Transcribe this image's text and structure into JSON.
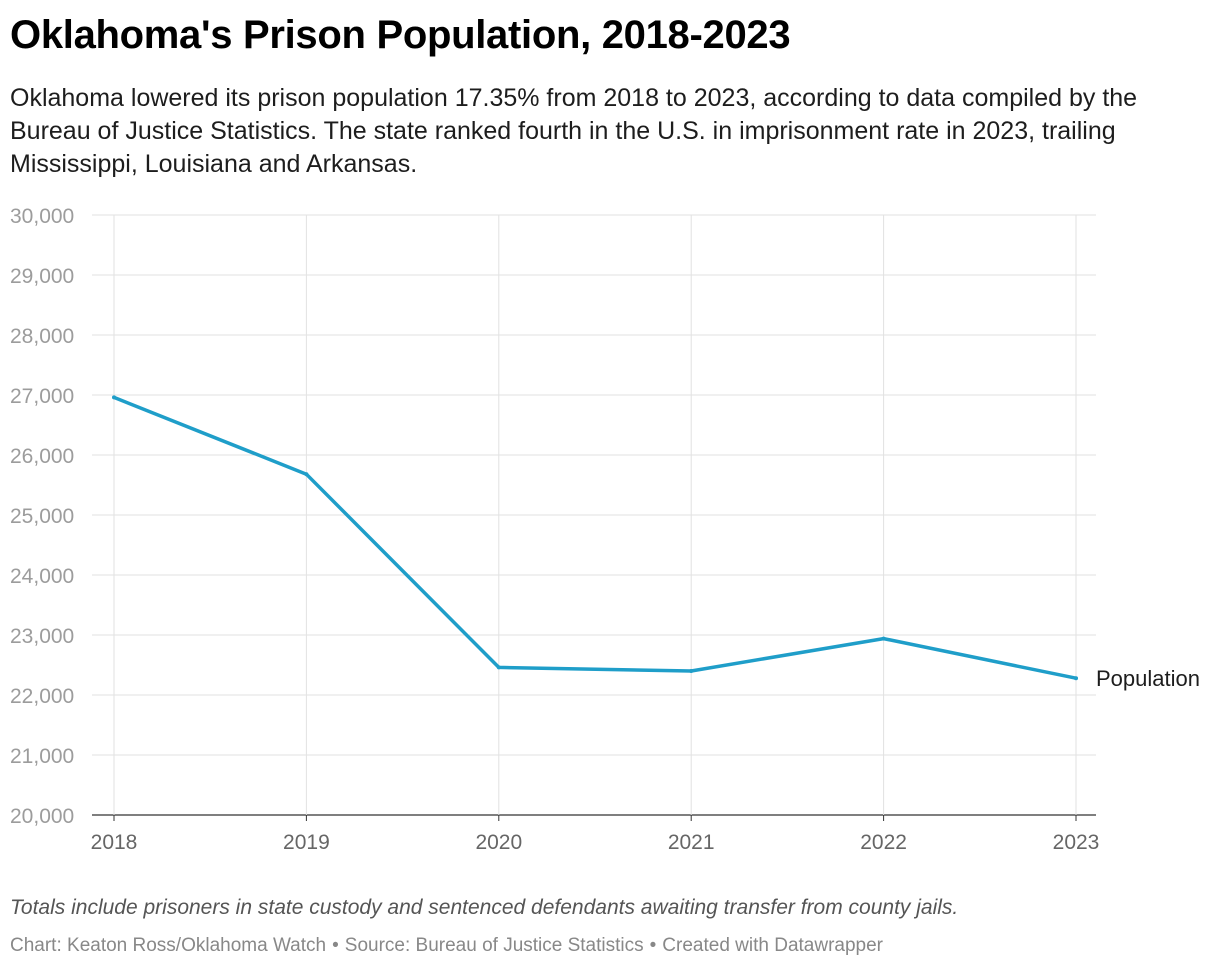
{
  "header": {
    "title": "Oklahoma's Prison Population, 2018-2023",
    "subtitle": "Oklahoma lowered its prison population 17.35% from 2018 to 2023, according to data compiled by the Bureau of Justice Statistics. The state ranked fourth in the U.S. in imprisonment rate in 2023, trailing Mississippi, Louisiana and Arkansas."
  },
  "chart_data": {
    "type": "line",
    "title": "Oklahoma's Prison Population, 2018-2023",
    "xlabel": "",
    "ylabel": "",
    "x": [
      "2018",
      "2019",
      "2020",
      "2021",
      "2022",
      "2023"
    ],
    "ylim": [
      20000,
      30000
    ],
    "yticks": [
      20000,
      21000,
      22000,
      23000,
      24000,
      25000,
      26000,
      27000,
      28000,
      29000,
      30000
    ],
    "ytick_labels": [
      "20,000",
      "21,000",
      "22,000",
      "23,000",
      "24,000",
      "25,000",
      "26,000",
      "27,000",
      "28,000",
      "29,000",
      "30,000"
    ],
    "grid": true,
    "series": [
      {
        "name": "Population",
        "values": [
          26960,
          25680,
          22460,
          22400,
          22940,
          22280
        ],
        "color": "#1f9ec9"
      }
    ]
  },
  "footer": {
    "note": "Totals include prisoners in state custody and sentenced defendants awaiting transfer from county jails.",
    "credit": "Chart: Keaton Ross/Oklahoma Watch",
    "source": "Source: Bureau of Justice Statistics",
    "tool": "Created with Datawrapper",
    "separator": "•"
  }
}
